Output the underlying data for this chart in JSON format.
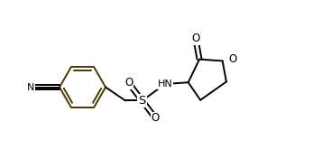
{
  "bg_color": "#ffffff",
  "line_color": "#000000",
  "ring_color": "#4a3b00",
  "line_width": 1.4,
  "figsize": [
    3.57,
    1.86
  ],
  "dpi": 100,
  "xlim": [
    0,
    10
  ],
  "ylim": [
    0,
    5.2
  ]
}
